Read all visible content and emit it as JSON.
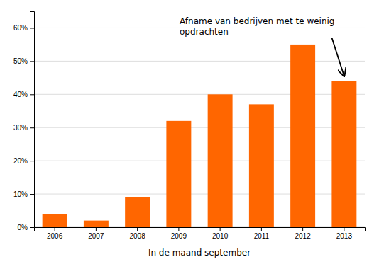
{
  "chart_data": {
    "type": "bar",
    "categories": [
      "2006",
      "2007",
      "2008",
      "2009",
      "2010",
      "2011",
      "2012",
      "2013"
    ],
    "values": [
      0.04,
      0.02,
      0.09,
      0.32,
      0.4,
      0.37,
      0.55,
      0.44
    ],
    "color": "#FF6600",
    "ylim": [
      0,
      0.65
    ],
    "yticks": [
      {
        "value": 0.0,
        "label": "0%"
      },
      {
        "value": 0.1,
        "label": "10%"
      },
      {
        "value": 0.2,
        "label": "20%"
      },
      {
        "value": 0.3,
        "label": "30%"
      },
      {
        "value": 0.4,
        "label": "40%"
      },
      {
        "value": 0.5,
        "label": "50%"
      },
      {
        "value": 0.6,
        "label": "60%"
      }
    ],
    "x_label": "In de maand september",
    "grid": true,
    "annotations": [
      {
        "text": "Afname van bedrijven met te weinig\nopdrachten",
        "x": "2013",
        "y": 0.455
      }
    ]
  }
}
